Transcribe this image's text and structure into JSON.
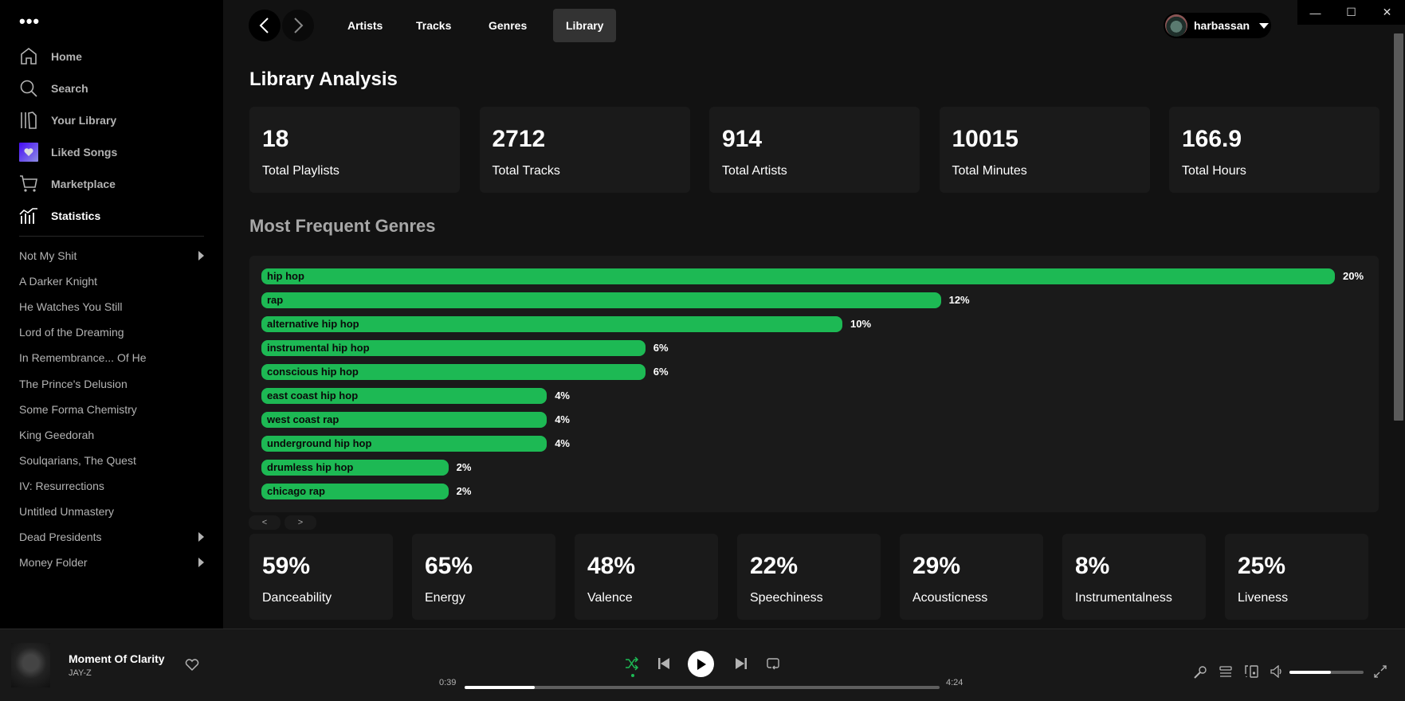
{
  "sidebar": {
    "menu_icon": "more-dots-icon",
    "nav": [
      {
        "label": "Home",
        "icon": "home-icon"
      },
      {
        "label": "Search",
        "icon": "search-icon"
      },
      {
        "label": "Your Library",
        "icon": "library-icon"
      },
      {
        "label": "Liked Songs",
        "icon": "heart-icon"
      },
      {
        "label": "Marketplace",
        "icon": "cart-icon"
      },
      {
        "label": "Statistics",
        "icon": "statistics-icon",
        "active": true
      }
    ],
    "playlists": [
      {
        "name": "Not My Shit",
        "folder": true
      },
      {
        "name": "A Darker Knight"
      },
      {
        "name": "He Watches You Still"
      },
      {
        "name": "Lord of the Dreaming"
      },
      {
        "name": "In Remembrance... Of He"
      },
      {
        "name": "The Prince's Delusion"
      },
      {
        "name": "Some Forma Chemistry"
      },
      {
        "name": "King Geedorah"
      },
      {
        "name": "Soulqarians, The Quest"
      },
      {
        "name": "IV: Resurrections"
      },
      {
        "name": "Untitled Unmastery"
      },
      {
        "name": "Dead Presidents",
        "folder": true
      },
      {
        "name": "Money Folder",
        "folder": true
      }
    ]
  },
  "header": {
    "tabs": [
      "Artists",
      "Tracks",
      "Genres",
      "Library"
    ],
    "active_tab": "Library",
    "user": "harbassan"
  },
  "page": {
    "title": "Library Analysis",
    "stats": [
      {
        "value": "18",
        "label": "Total Playlists"
      },
      {
        "value": "2712",
        "label": "Total Tracks"
      },
      {
        "value": "914",
        "label": "Total Artists"
      },
      {
        "value": "10015",
        "label": "Total Minutes"
      },
      {
        "value": "166.9",
        "label": "Total Hours"
      }
    ],
    "genres_title": "Most Frequent Genres",
    "genres": [
      {
        "name": "hip hop",
        "pct": 20,
        "label": "20%"
      },
      {
        "name": "rap",
        "pct": 12,
        "label": "12%"
      },
      {
        "name": "alternative hip hop",
        "pct": 10,
        "label": "10%"
      },
      {
        "name": "instrumental hip hop",
        "pct": 6,
        "label": "6%"
      },
      {
        "name": "conscious hip hop",
        "pct": 6,
        "label": "6%"
      },
      {
        "name": "east coast hip hop",
        "pct": 4,
        "label": "4%"
      },
      {
        "name": "west coast rap",
        "pct": 4,
        "label": "4%"
      },
      {
        "name": "underground hip hop",
        "pct": 4,
        "label": "4%"
      },
      {
        "name": "drumless hip hop",
        "pct": 2,
        "label": "2%"
      },
      {
        "name": "chicago rap",
        "pct": 2,
        "label": "2%"
      }
    ],
    "pager": {
      "prev": "<",
      "next": ">"
    },
    "features": [
      {
        "value": "59%",
        "label": "Danceability"
      },
      {
        "value": "65%",
        "label": "Energy"
      },
      {
        "value": "48%",
        "label": "Valence"
      },
      {
        "value": "22%",
        "label": "Speechiness"
      },
      {
        "value": "29%",
        "label": "Acousticness"
      },
      {
        "value": "8%",
        "label": "Instrumentalness"
      },
      {
        "value": "25%",
        "label": "Liveness"
      }
    ]
  },
  "player": {
    "title": "Moment Of Clarity",
    "artist": "JAY-Z",
    "elapsed": "0:39",
    "duration": "4:24",
    "progress": 0.148,
    "volume": 0.56,
    "shuffle_on": true
  },
  "colors": {
    "accent": "#1db954",
    "background": "#121212",
    "sidebar": "#000000",
    "card": "#1a1a1a"
  }
}
